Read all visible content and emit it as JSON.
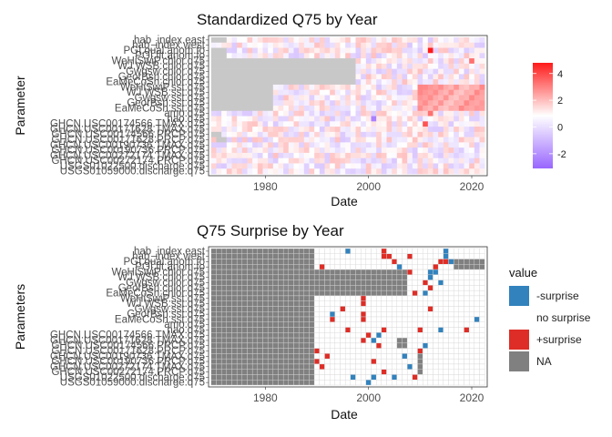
{
  "chart_data": [
    {
      "type": "heatmap",
      "title": "Standardized Q75 by Year",
      "xlabel": "Date",
      "ylabel": "Parameter",
      "xlim": [
        1969,
        2023
      ],
      "x_ticks": [
        1980,
        2000,
        2020
      ],
      "y_labels": [
        "hab_index.east",
        "hab_index.west",
        "PGI.qual.anom.fo",
        "PGI.fit.anom.fo",
        "WeHiSwiP.chlor.q75",
        "WJ.WSB.chlor.q75",
        "Gwgsw.chlor.q75",
        "GeorBsn.chlor.q75",
        "EaMeCoSh.chlor.q75",
        "WeHiSwiP.sst.q75",
        "WJ.WSB.sst.q75",
        "Gwgsw.sst.q75",
        "GeorBsn.sst.q75",
        "EaMeCoSh.sst.q75",
        "amo.q75",
        "nao.q75",
        "GHCN.USC00174566.TMAX.q75",
        "GHCN.USC00171628.TMAX.q75",
        "GHCN.USC00174566.PRCP.q75",
        "GHCN.USC00171628.PRCP.q75",
        "GHCN.USC00190736.TMAX.q75",
        "GHCN.USC00190736.PRCP.q75",
        "GHCN.USC00272174.TMAX.q75",
        "GHCN.USC00272174.PRCP.q75",
        "USGS01022500.discharge.q75",
        "USGS01059000.discharge.q75"
      ],
      "legend": {
        "title": "",
        "position": "right",
        "ticks": [
          4,
          2,
          0,
          -2
        ],
        "low_color": "#9966ff",
        "mid_color": "#ffffff",
        "high_color": "#ff1a1a",
        "na_color": "#c8c8c8"
      },
      "na_coverage": [
        {
          "row": "hab_index.east",
          "from": 1970,
          "to": 1972
        },
        {
          "row": "PGI.qual.anom.fo",
          "from": 1970,
          "to": 1972
        },
        {
          "row": "PGI.fit.anom.fo",
          "from": 1970,
          "to": 1972
        },
        {
          "row": "WeHiSwiP.chlor.q75",
          "from": 1970,
          "to": 1997
        },
        {
          "row": "WJ.WSB.chlor.q75",
          "from": 1970,
          "to": 1997
        },
        {
          "row": "Gwgsw.chlor.q75",
          "from": 1970,
          "to": 1997
        },
        {
          "row": "GeorBsn.chlor.q75",
          "from": 1970,
          "to": 1997
        },
        {
          "row": "EaMeCoSh.chlor.q75",
          "from": 1970,
          "to": 1997
        },
        {
          "row": "WeHiSwiP.sst.q75",
          "from": 1970,
          "to": 1981
        },
        {
          "row": "WJ.WSB.sst.q75",
          "from": 1970,
          "to": 1981
        },
        {
          "row": "Gwgsw.sst.q75",
          "from": 1970,
          "to": 1981
        },
        {
          "row": "GeorBsn.sst.q75",
          "from": 1970,
          "to": 1981
        },
        {
          "row": "EaMeCoSh.sst.q75",
          "from": 1970,
          "to": 1981
        },
        {
          "row": "GHCN.USC00174566.PRCP.q75",
          "from": 1970,
          "to": 1971
        },
        {
          "row": "GHCN.USC00171628.PRCP.q75",
          "from": 1971,
          "to": 1972
        }
      ],
      "highlights": [
        {
          "row": "PGI.qual.anom.fo",
          "year": 2012,
          "value": 4
        },
        {
          "row": "WeHiSwiP.chlor.q75",
          "year": 2020,
          "value": 2.5
        },
        {
          "row": "amo.q75",
          "year": 2012,
          "value": 2.5
        },
        {
          "row": "nao.q75",
          "year": 2001,
          "value": -2.5
        },
        {
          "row": "GHCN.USC00174566.TMAX.q75",
          "year": 2011,
          "value": 3
        }
      ]
    },
    {
      "type": "heatmap",
      "title": "Q75 Surprise by Year",
      "xlabel": "Date",
      "ylabel": "Parameters",
      "xlim": [
        1969,
        2023
      ],
      "x_ticks": [
        1980,
        2000,
        2020
      ],
      "y_labels": [
        "hab_index.east",
        "hab_index.west",
        "PGI.qual.anom.fo",
        "PGI.fit.anom.fo",
        "WeHiSwiP.chlor.q75",
        "WJ.WSB.chlor.q75",
        "Gwgsw.chlor.q75",
        "GeorBsn.chlor.q75",
        "EaMeCoSh.chlor.q75",
        "WeHiSwiP.sst.q75",
        "WJ.WSB.sst.q75",
        "Gwgsw.sst.q75",
        "GeorBsn.sst.q75",
        "EaMeCoSh.sst.q75",
        "amo.q75",
        "nao.q75",
        "GHCN.USC00174566.TMAX.q75",
        "GHCN.USC00171628.TMAX.q75",
        "GHCN.USC00174566.PRCP.q75",
        "GHCN.USC00171628.PRCP.q75",
        "GHCN.USC00190736.TMAX.q75",
        "GHCN.USC00190736.PRCP.q75",
        "GHCN.USC00272174.TMAX.q75",
        "GHCN.USC00272174.PRCP.q75",
        "USGS01022500.discharge.q75",
        "USGS01059000.discharge.q75"
      ],
      "legend": {
        "title": "value",
        "position": "right",
        "entries": [
          {
            "label": "-surprise",
            "color": "#3182bd"
          },
          {
            "label": "no surprise",
            "color": "#ffffff"
          },
          {
            "label": "+surprise",
            "color": "#de2d26"
          },
          {
            "label": "NA",
            "color": "#808080"
          }
        ]
      },
      "na_ranges": [
        {
          "rows": "all",
          "from": 1970,
          "to": 1989
        },
        {
          "rows": [
            "hab_index.east",
            "hab_index.west"
          ],
          "from": 1970,
          "to": 1989
        },
        {
          "rows": [
            "PGI.qual.anom.fo",
            "PGI.fit.anom.fo"
          ],
          "from": 2017,
          "to": 2022
        },
        {
          "rows": [
            "WeHiSwiP.chlor.q75",
            "WJ.WSB.chlor.q75",
            "Gwgsw.chlor.q75",
            "GeorBsn.chlor.q75",
            "EaMeCoSh.chlor.q75"
          ],
          "from": 1990,
          "to": 2007
        },
        {
          "rows": [
            "GHCN.USC00171628.TMAX.q75",
            "GHCN.USC00174566.PRCP.q75"
          ],
          "from": 2006,
          "to": 2007
        },
        {
          "rows": [
            "GHCN.USC00190736.TMAX.q75",
            "GHCN.USC00190736.PRCP.q75",
            "GHCN.USC00272174.TMAX.q75",
            "GHCN.USC00272174.PRCP.q75"
          ],
          "from": 2010,
          "to": 2010
        }
      ],
      "surprises": [
        {
          "row": "hab_index.east",
          "year": 1996,
          "value": "-surprise"
        },
        {
          "row": "hab_index.east",
          "year": 2003,
          "value": "+surprise"
        },
        {
          "row": "hab_index.east",
          "year": 2015,
          "value": "-surprise"
        },
        {
          "row": "hab_index.west",
          "year": 2003,
          "value": "+surprise"
        },
        {
          "row": "hab_index.west",
          "year": 2004,
          "value": "+surprise"
        },
        {
          "row": "hab_index.west",
          "year": 2008,
          "value": "+surprise"
        },
        {
          "row": "hab_index.west",
          "year": 2015,
          "value": "-surprise"
        },
        {
          "row": "PGI.qual.anom.fo",
          "year": 2005,
          "value": "+surprise"
        },
        {
          "row": "PGI.qual.anom.fo",
          "year": 2014,
          "value": "+surprise"
        },
        {
          "row": "PGI.qual.anom.fo",
          "year": 2015,
          "value": "+surprise"
        },
        {
          "row": "PGI.qual.anom.fo",
          "year": 2016,
          "value": "-surprise"
        },
        {
          "row": "PGI.fit.anom.fo",
          "year": 1991,
          "value": "+surprise"
        },
        {
          "row": "PGI.fit.anom.fo",
          "year": 2006,
          "value": "-surprise"
        },
        {
          "row": "PGI.fit.anom.fo",
          "year": 2013,
          "value": "+surprise"
        },
        {
          "row": "WeHiSwiP.chlor.q75",
          "year": 2008,
          "value": "+surprise"
        },
        {
          "row": "WeHiSwiP.chlor.q75",
          "year": 2012,
          "value": "-surprise"
        },
        {
          "row": "WeHiSwiP.chlor.q75",
          "year": 2013,
          "value": "-surprise"
        },
        {
          "row": "WJ.WSB.chlor.q75",
          "year": 2012,
          "value": "-surprise"
        },
        {
          "row": "Gwgsw.chlor.q75",
          "year": 2011,
          "value": "+surprise"
        },
        {
          "row": "Gwgsw.chlor.q75",
          "year": 2014,
          "value": "-surprise"
        },
        {
          "row": "GeorBsn.chlor.q75",
          "year": 2012,
          "value": "+surprise"
        },
        {
          "row": "EaMeCoSh.chlor.q75",
          "year": 2009,
          "value": "+surprise"
        },
        {
          "row": "EaMeCoSh.chlor.q75",
          "year": 2011,
          "value": "-surprise"
        },
        {
          "row": "WeHiSwiP.sst.q75",
          "year": 1999,
          "value": "+surprise"
        },
        {
          "row": "WJ.WSB.sst.q75",
          "year": 1999,
          "value": "+surprise"
        },
        {
          "row": "Gwgsw.sst.q75",
          "year": 1995,
          "value": "+surprise"
        },
        {
          "row": "Gwgsw.sst.q75",
          "year": 2012,
          "value": "+surprise"
        },
        {
          "row": "GeorBsn.sst.q75",
          "year": 1993,
          "value": "-surprise"
        },
        {
          "row": "GeorBsn.sst.q75",
          "year": 1999,
          "value": "+surprise"
        },
        {
          "row": "EaMeCoSh.sst.q75",
          "year": 1993,
          "value": "+surprise"
        },
        {
          "row": "EaMeCoSh.sst.q75",
          "year": 1999,
          "value": "+surprise"
        },
        {
          "row": "EaMeCoSh.sst.q75",
          "year": 2021,
          "value": "-surprise"
        },
        {
          "row": "nao.q75",
          "year": 1996,
          "value": "+surprise"
        },
        {
          "row": "nao.q75",
          "year": 2003,
          "value": "+surprise"
        },
        {
          "row": "nao.q75",
          "year": 2010,
          "value": "+surprise"
        },
        {
          "row": "nao.q75",
          "year": 2014,
          "value": "-surprise"
        },
        {
          "row": "nao.q75",
          "year": 2019,
          "value": "+surprise"
        },
        {
          "row": "GHCN.USC00174566.TMAX.q75",
          "year": 2000,
          "value": "+surprise"
        },
        {
          "row": "GHCN.USC00174566.TMAX.q75",
          "year": 2002,
          "value": "-surprise"
        },
        {
          "row": "GHCN.USC00171628.TMAX.q75",
          "year": 1999,
          "value": "+surprise"
        },
        {
          "row": "GHCN.USC00171628.TMAX.q75",
          "year": 2001,
          "value": "-surprise"
        },
        {
          "row": "GHCN.USC00174566.PRCP.q75",
          "year": 2002,
          "value": "+surprise"
        },
        {
          "row": "GHCN.USC00174566.PRCP.q75",
          "year": 2011,
          "value": "-surprise"
        },
        {
          "row": "GHCN.USC00171628.PRCP.q75",
          "year": 1990,
          "value": "+surprise"
        },
        {
          "row": "GHCN.USC00171628.PRCP.q75",
          "year": 2010,
          "value": "+surprise"
        },
        {
          "row": "GHCN.USC00190736.TMAX.q75",
          "year": 1992,
          "value": "+surprise"
        },
        {
          "row": "GHCN.USC00190736.TMAX.q75",
          "year": 2007,
          "value": "-surprise"
        },
        {
          "row": "GHCN.USC00190736.PRCP.q75",
          "year": 1990,
          "value": "+surprise"
        },
        {
          "row": "GHCN.USC00190736.PRCP.q75",
          "year": 2001,
          "value": "+surprise"
        },
        {
          "row": "GHCN.USC00272174.TMAX.q75",
          "year": 1991,
          "value": "+surprise"
        },
        {
          "row": "GHCN.USC00272174.TMAX.q75",
          "year": 2008,
          "value": "-surprise"
        },
        {
          "row": "GHCN.USC00272174.PRCP.q75",
          "year": 2003,
          "value": "+surprise"
        },
        {
          "row": "USGS01022500.discharge.q75",
          "year": 1997,
          "value": "-surprise"
        },
        {
          "row": "USGS01022500.discharge.q75",
          "year": 2001,
          "value": "-surprise"
        },
        {
          "row": "USGS01022500.discharge.q75",
          "year": 2005,
          "value": "-surprise"
        },
        {
          "row": "USGS01022500.discharge.q75",
          "year": 2009,
          "value": "+surprise"
        },
        {
          "row": "USGS01059000.discharge.q75",
          "year": 2000,
          "value": "-surprise"
        }
      ]
    }
  ]
}
